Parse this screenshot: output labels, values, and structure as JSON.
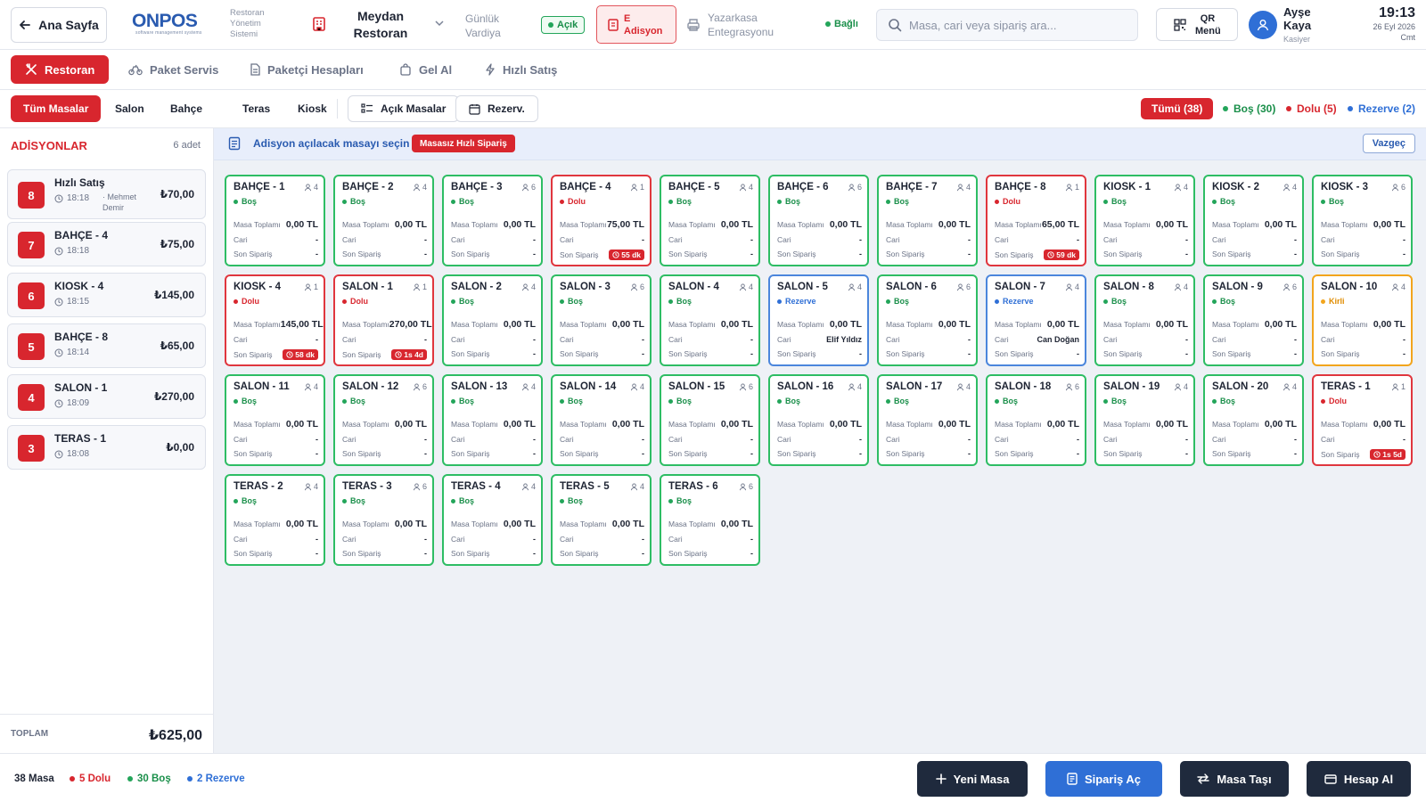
{
  "header": {
    "home_label": "Ana Sayfa",
    "logo_text": "ONPOS",
    "logo_sub": "software management systems",
    "system_name": "Restoran Yönetim Sistemi",
    "restaurant": "Meydan Restoran",
    "shift_label": "Günlük Vardiya",
    "shift_status": "Açık",
    "e_adisyon": "E Adisyon",
    "cash_register": "Yazarkasa Entegrasyonu",
    "connection": "Bağlı",
    "search_placeholder": "Masa, cari veya sipariş ara...",
    "qr_label": "QR Menü",
    "user_name": "Ayşe Kaya",
    "user_role": "Kasiyer",
    "time": "19:13",
    "date": "26 Eyl 2026",
    "day": "Cmt"
  },
  "nav": {
    "items": [
      {
        "label": "Restoran",
        "icon": "cutlery-icon"
      },
      {
        "label": "Paket Servis",
        "icon": "bike-icon"
      },
      {
        "label": "Paketçi Hesapları",
        "icon": "document-icon"
      },
      {
        "label": "Gel Al",
        "icon": "bag-icon"
      },
      {
        "label": "Hızlı Satış",
        "icon": "bolt-icon"
      }
    ]
  },
  "filters": {
    "tabs": [
      "Tüm Masalar",
      "Salon",
      "Bahçe",
      "Teras",
      "Kiosk"
    ],
    "open_tables": "Açık Masalar",
    "reservations": "Rezerv.",
    "summary": {
      "total": "Tümü (38)",
      "empty": "Boş (30)",
      "full": "Dolu (5)",
      "reserved": "Rezerve (2)"
    }
  },
  "colors": {
    "accent": "#d8262e",
    "empty": "#2ebd64",
    "full": "#e0363e",
    "reserved": "#4b86dc",
    "dirty": "#f2a51d",
    "dark": "#1f2a3d",
    "blue": "#2f6fd6"
  },
  "sidebar": {
    "title": "ADİSYONLAR",
    "count": "6 adet",
    "items": [
      {
        "num": "8",
        "name": "Hızlı Satış",
        "time": "18:18",
        "owner": "· Mehmet Demir",
        "amount": "₺70,00"
      },
      {
        "num": "7",
        "name": "BAHÇE - 4",
        "time": "18:18",
        "owner": "",
        "amount": "₺75,00"
      },
      {
        "num": "6",
        "name": "KIOSK - 4",
        "time": "18:15",
        "owner": "",
        "amount": "₺145,00"
      },
      {
        "num": "5",
        "name": "BAHÇE - 8",
        "time": "18:14",
        "owner": "",
        "amount": "₺65,00"
      },
      {
        "num": "4",
        "name": "SALON - 1",
        "time": "18:09",
        "owner": "",
        "amount": "₺270,00"
      },
      {
        "num": "3",
        "name": "TERAS - 1",
        "time": "18:08",
        "owner": "",
        "amount": "₺0,00"
      }
    ],
    "total_label": "TOPLAM",
    "total_value": "₺625,00"
  },
  "main": {
    "info": "Adisyon açılacak masayı seçin",
    "quick_order": "Masasız Hızlı Sipariş",
    "cancel": "Vazgeç",
    "labels": {
      "total": "Masa Toplamı",
      "account": "Cari",
      "last_order": "Son Sipariş"
    },
    "tables": [
      {
        "name": "BAHÇE - 1",
        "cap": "4",
        "status": "bos",
        "status_label": "Boş",
        "total": "0,00 TL",
        "cari": "-",
        "last": "-"
      },
      {
        "name": "BAHÇE - 2",
        "cap": "4",
        "status": "bos",
        "status_label": "Boş",
        "total": "0,00 TL",
        "cari": "-",
        "last": "-"
      },
      {
        "name": "BAHÇE - 3",
        "cap": "6",
        "status": "bos",
        "status_label": "Boş",
        "total": "0,00 TL",
        "cari": "-",
        "last": "-"
      },
      {
        "name": "BAHÇE - 4",
        "cap": "1",
        "status": "dolu",
        "status_label": "Dolu",
        "total": "75,00 TL",
        "cari": "-",
        "last": "55 dk"
      },
      {
        "name": "BAHÇE - 5",
        "cap": "4",
        "status": "bos",
        "status_label": "Boş",
        "total": "0,00 TL",
        "cari": "-",
        "last": "-"
      },
      {
        "name": "BAHÇE - 6",
        "cap": "6",
        "status": "bos",
        "status_label": "Boş",
        "total": "0,00 TL",
        "cari": "-",
        "last": "-"
      },
      {
        "name": "BAHÇE - 7",
        "cap": "4",
        "status": "bos",
        "status_label": "Boş",
        "total": "0,00 TL",
        "cari": "-",
        "last": "-"
      },
      {
        "name": "BAHÇE - 8",
        "cap": "1",
        "status": "dolu",
        "status_label": "Dolu",
        "total": "65,00 TL",
        "cari": "-",
        "last": "59 dk"
      },
      {
        "name": "KIOSK - 1",
        "cap": "4",
        "status": "bos",
        "status_label": "Boş",
        "total": "0,00 TL",
        "cari": "-",
        "last": "-"
      },
      {
        "name": "KIOSK - 2",
        "cap": "4",
        "status": "bos",
        "status_label": "Boş",
        "total": "0,00 TL",
        "cari": "-",
        "last": "-"
      },
      {
        "name": "KIOSK - 3",
        "cap": "6",
        "status": "bos",
        "status_label": "Boş",
        "total": "0,00 TL",
        "cari": "-",
        "last": "-"
      },
      {
        "name": "KIOSK - 4",
        "cap": "1",
        "status": "dolu",
        "status_label": "Dolu",
        "total": "145,00 TL",
        "cari": "-",
        "last": "58 dk"
      },
      {
        "name": "SALON - 1",
        "cap": "1",
        "status": "dolu",
        "status_label": "Dolu",
        "total": "270,00 TL",
        "cari": "-",
        "last": "1s 4d"
      },
      {
        "name": "SALON - 2",
        "cap": "4",
        "status": "bos",
        "status_label": "Boş",
        "total": "0,00 TL",
        "cari": "-",
        "last": "-"
      },
      {
        "name": "SALON - 3",
        "cap": "6",
        "status": "bos",
        "status_label": "Boş",
        "total": "0,00 TL",
        "cari": "-",
        "last": "-"
      },
      {
        "name": "SALON - 4",
        "cap": "4",
        "status": "bos",
        "status_label": "Boş",
        "total": "0,00 TL",
        "cari": "-",
        "last": "-"
      },
      {
        "name": "SALON - 5",
        "cap": "4",
        "status": "rezerve",
        "status_label": "Rezerve",
        "total": "0,00 TL",
        "cari": "Elif Yıldız",
        "last": "-"
      },
      {
        "name": "SALON - 6",
        "cap": "6",
        "status": "bos",
        "status_label": "Boş",
        "total": "0,00 TL",
        "cari": "-",
        "last": "-"
      },
      {
        "name": "SALON - 7",
        "cap": "4",
        "status": "rezerve",
        "status_label": "Rezerve",
        "total": "0,00 TL",
        "cari": "Can Doğan",
        "last": "-"
      },
      {
        "name": "SALON - 8",
        "cap": "4",
        "status": "bos",
        "status_label": "Boş",
        "total": "0,00 TL",
        "cari": "-",
        "last": "-"
      },
      {
        "name": "SALON - 9",
        "cap": "6",
        "status": "bos",
        "status_label": "Boş",
        "total": "0,00 TL",
        "cari": "-",
        "last": "-"
      },
      {
        "name": "SALON - 10",
        "cap": "4",
        "status": "kirli",
        "status_label": "Kirli",
        "total": "0,00 TL",
        "cari": "-",
        "last": "-"
      },
      {
        "name": "SALON - 11",
        "cap": "4",
        "status": "bos",
        "status_label": "Boş",
        "total": "0,00 TL",
        "cari": "-",
        "last": "-"
      },
      {
        "name": "SALON - 12",
        "cap": "6",
        "status": "bos",
        "status_label": "Boş",
        "total": "0,00 TL",
        "cari": "-",
        "last": "-"
      },
      {
        "name": "SALON - 13",
        "cap": "4",
        "status": "bos",
        "status_label": "Boş",
        "total": "0,00 TL",
        "cari": "-",
        "last": "-"
      },
      {
        "name": "SALON - 14",
        "cap": "4",
        "status": "bos",
        "status_label": "Boş",
        "total": "0,00 TL",
        "cari": "-",
        "last": "-"
      },
      {
        "name": "SALON - 15",
        "cap": "6",
        "status": "bos",
        "status_label": "Boş",
        "total": "0,00 TL",
        "cari": "-",
        "last": "-"
      },
      {
        "name": "SALON - 16",
        "cap": "4",
        "status": "bos",
        "status_label": "Boş",
        "total": "0,00 TL",
        "cari": "-",
        "last": "-"
      },
      {
        "name": "SALON - 17",
        "cap": "4",
        "status": "bos",
        "status_label": "Boş",
        "total": "0,00 TL",
        "cari": "-",
        "last": "-"
      },
      {
        "name": "SALON - 18",
        "cap": "6",
        "status": "bos",
        "status_label": "Boş",
        "total": "0,00 TL",
        "cari": "-",
        "last": "-"
      },
      {
        "name": "SALON - 19",
        "cap": "4",
        "status": "bos",
        "status_label": "Boş",
        "total": "0,00 TL",
        "cari": "-",
        "last": "-"
      },
      {
        "name": "SALON - 20",
        "cap": "4",
        "status": "bos",
        "status_label": "Boş",
        "total": "0,00 TL",
        "cari": "-",
        "last": "-"
      },
      {
        "name": "TERAS - 1",
        "cap": "1",
        "status": "dolu",
        "status_label": "Dolu",
        "total": "0,00 TL",
        "cari": "-",
        "last": "1s 5d"
      },
      {
        "name": "TERAS - 2",
        "cap": "4",
        "status": "bos",
        "status_label": "Boş",
        "total": "0,00 TL",
        "cari": "-",
        "last": "-"
      },
      {
        "name": "TERAS - 3",
        "cap": "6",
        "status": "bos",
        "status_label": "Boş",
        "total": "0,00 TL",
        "cari": "-",
        "last": "-"
      },
      {
        "name": "TERAS - 4",
        "cap": "4",
        "status": "bos",
        "status_label": "Boş",
        "total": "0,00 TL",
        "cari": "-",
        "last": "-"
      },
      {
        "name": "TERAS - 5",
        "cap": "4",
        "status": "bos",
        "status_label": "Boş",
        "total": "0,00 TL",
        "cari": "-",
        "last": "-"
      },
      {
        "name": "TERAS - 6",
        "cap": "6",
        "status": "bos",
        "status_label": "Boş",
        "total": "0,00 TL",
        "cari": "-",
        "last": "-"
      }
    ]
  },
  "footer": {
    "tables": "38 Masa",
    "full": "5 Dolu",
    "empty": "30 Boş",
    "reserved": "2 Rezerve",
    "new_table": "Yeni Masa",
    "open_order": "Sipariş Aç",
    "move_table": "Masa Taşı",
    "checkout": "Hesap Al"
  }
}
